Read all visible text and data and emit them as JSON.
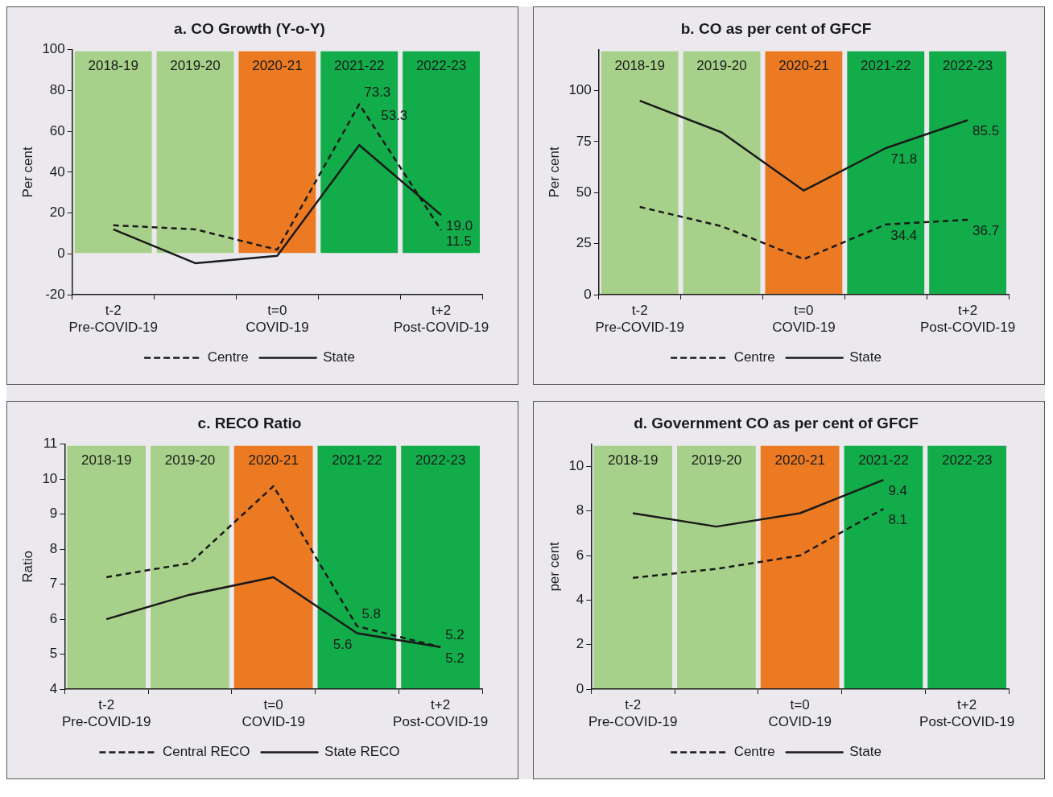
{
  "chart_data": [
    {
      "type": "line",
      "title": "a. CO Growth (Y-o-Y)",
      "ylabel": "Per cent",
      "categories": [
        "2018-19",
        "2019-20",
        "2020-21",
        "2021-22",
        "2022-23"
      ],
      "ylim": [
        -20,
        100
      ],
      "yticks": [
        -20,
        0,
        20,
        40,
        60,
        80,
        100
      ],
      "grid": false,
      "legend": "bottom",
      "marker": "none",
      "annotations": [
        "t-2\nPre-COVID-19",
        "t=0\nCOVID-19",
        "t+2\nPost-COVID-19"
      ],
      "bands": [
        {
          "axis": "x",
          "from": "2018-19",
          "to": "2018-19",
          "color": "#a7d18a"
        },
        {
          "axis": "x",
          "from": "2019-20",
          "to": "2019-20",
          "color": "#a7d18a"
        },
        {
          "axis": "x",
          "from": "2020-21",
          "to": "2020-21",
          "color": "#ec7a23"
        },
        {
          "axis": "x",
          "from": "2021-22",
          "to": "2021-22",
          "color": "#12ad4a"
        },
        {
          "axis": "x",
          "from": "2022-23",
          "to": "2022-23",
          "color": "#12ad4a"
        }
      ],
      "series": [
        {
          "name": "Centre",
          "color": "#1a1a1a",
          "line_style": "dashed",
          "values": [
            14,
            12,
            2,
            73.3,
            11.5
          ],
          "value_labels": [
            null,
            null,
            null,
            "73.3",
            "11.5"
          ]
        },
        {
          "name": "State",
          "color": "#1a1a1a",
          "line_style": "solid",
          "values": [
            12,
            -4.6,
            -1,
            53.3,
            19.0
          ],
          "value_labels": [
            null,
            null,
            null,
            "53.3",
            "19.0"
          ]
        }
      ]
    },
    {
      "type": "line",
      "title": "b. CO as per cent of GFCF",
      "ylabel": "Per cent",
      "categories": [
        "2018-19",
        "2019-20",
        "2020-21",
        "2021-22",
        "2022-23"
      ],
      "ylim": [
        0,
        120
      ],
      "yticks": [
        0,
        25,
        50,
        75,
        100
      ],
      "grid": false,
      "legend": "bottom",
      "marker": "none",
      "annotations": [
        "t-2\nPre-COVID-19",
        "t=0\nCOVID-19",
        "t+2\nPost-COVID-19"
      ],
      "bands": [
        {
          "axis": "x",
          "from": "2018-19",
          "to": "2018-19",
          "color": "#a7d18a"
        },
        {
          "axis": "x",
          "from": "2019-20",
          "to": "2019-20",
          "color": "#a7d18a"
        },
        {
          "axis": "x",
          "from": "2020-21",
          "to": "2020-21",
          "color": "#ec7a23"
        },
        {
          "axis": "x",
          "from": "2021-22",
          "to": "2021-22",
          "color": "#12ad4a"
        },
        {
          "axis": "x",
          "from": "2022-23",
          "to": "2022-23",
          "color": "#12ad4a"
        }
      ],
      "series": [
        {
          "name": "Centre",
          "color": "#1a1a1a",
          "line_style": "dashed",
          "values": [
            43,
            33.5,
            17.4,
            34.4,
            36.7
          ],
          "value_labels": [
            null,
            null,
            null,
            "34.4",
            "36.7"
          ]
        },
        {
          "name": "State",
          "color": "#1a1a1a",
          "line_style": "solid",
          "values": [
            95,
            79.5,
            51,
            71.8,
            85.5
          ],
          "value_labels": [
            null,
            null,
            null,
            "71.8",
            "85.5"
          ]
        }
      ]
    },
    {
      "type": "line",
      "title": "c. RECO Ratio",
      "ylabel": "Ratio",
      "categories": [
        "2018-19",
        "2019-20",
        "2020-21",
        "2021-22",
        "2022-23"
      ],
      "ylim": [
        4,
        11
      ],
      "yticks": [
        4,
        5,
        6,
        7,
        8,
        9,
        10,
        11
      ],
      "grid": false,
      "legend": "bottom",
      "marker": "none",
      "annotations": [
        "t-2\nPre-COVID-19",
        "t=0\nCOVID-19",
        "t+2\nPost-COVID-19"
      ],
      "bands": [
        {
          "axis": "x",
          "from": "2018-19",
          "to": "2018-19",
          "color": "#a7d18a"
        },
        {
          "axis": "x",
          "from": "2019-20",
          "to": "2019-20",
          "color": "#a7d18a"
        },
        {
          "axis": "x",
          "from": "2020-21",
          "to": "2020-21",
          "color": "#ec7a23"
        },
        {
          "axis": "x",
          "from": "2021-22",
          "to": "2021-22",
          "color": "#12ad4a"
        },
        {
          "axis": "x",
          "from": "2022-23",
          "to": "2022-23",
          "color": "#12ad4a"
        }
      ],
      "series": [
        {
          "name": "Central RECO",
          "color": "#1a1a1a",
          "line_style": "dashed",
          "values": [
            7.2,
            7.6,
            9.8,
            5.8,
            5.2
          ],
          "value_labels": [
            null,
            null,
            null,
            "5.8",
            "5.2"
          ]
        },
        {
          "name": "State RECO",
          "color": "#1a1a1a",
          "line_style": "solid",
          "values": [
            6.0,
            6.7,
            7.2,
            5.6,
            5.2
          ],
          "value_labels": [
            null,
            null,
            null,
            "5.6",
            "5.2"
          ]
        }
      ]
    },
    {
      "type": "line",
      "title": "d. Government CO as per cent of GFCF",
      "ylabel": "per cent",
      "categories": [
        "2018-19",
        "2019-20",
        "2020-21",
        "2021-22",
        "2022-23"
      ],
      "ylim": [
        0,
        11
      ],
      "yticks": [
        0,
        2,
        4,
        6,
        8,
        10
      ],
      "grid": false,
      "legend": "bottom",
      "marker": "none",
      "annotations": [
        "t-2\nPre-COVID-19",
        "t=0\nCOVID-19",
        "t+2\nPost-COVID-19"
      ],
      "bands": [
        {
          "axis": "x",
          "from": "2018-19",
          "to": "2018-19",
          "color": "#a7d18a"
        },
        {
          "axis": "x",
          "from": "2019-20",
          "to": "2019-20",
          "color": "#a7d18a"
        },
        {
          "axis": "x",
          "from": "2020-21",
          "to": "2020-21",
          "color": "#ec7a23"
        },
        {
          "axis": "x",
          "from": "2021-22",
          "to": "2021-22",
          "color": "#12ad4a"
        },
        {
          "axis": "x",
          "from": "2022-23",
          "to": "2022-23",
          "color": "#12ad4a"
        }
      ],
      "series": [
        {
          "name": "Centre",
          "color": "#1a1a1a",
          "line_style": "dashed",
          "values": [
            5.0,
            5.4,
            6.0,
            8.1,
            null
          ],
          "value_labels": [
            null,
            null,
            null,
            "8.1",
            null
          ]
        },
        {
          "name": "State",
          "color": "#1a1a1a",
          "line_style": "solid",
          "values": [
            7.9,
            7.3,
            7.9,
            9.4,
            null
          ],
          "value_labels": [
            null,
            null,
            null,
            "9.4",
            null
          ]
        }
      ]
    }
  ]
}
